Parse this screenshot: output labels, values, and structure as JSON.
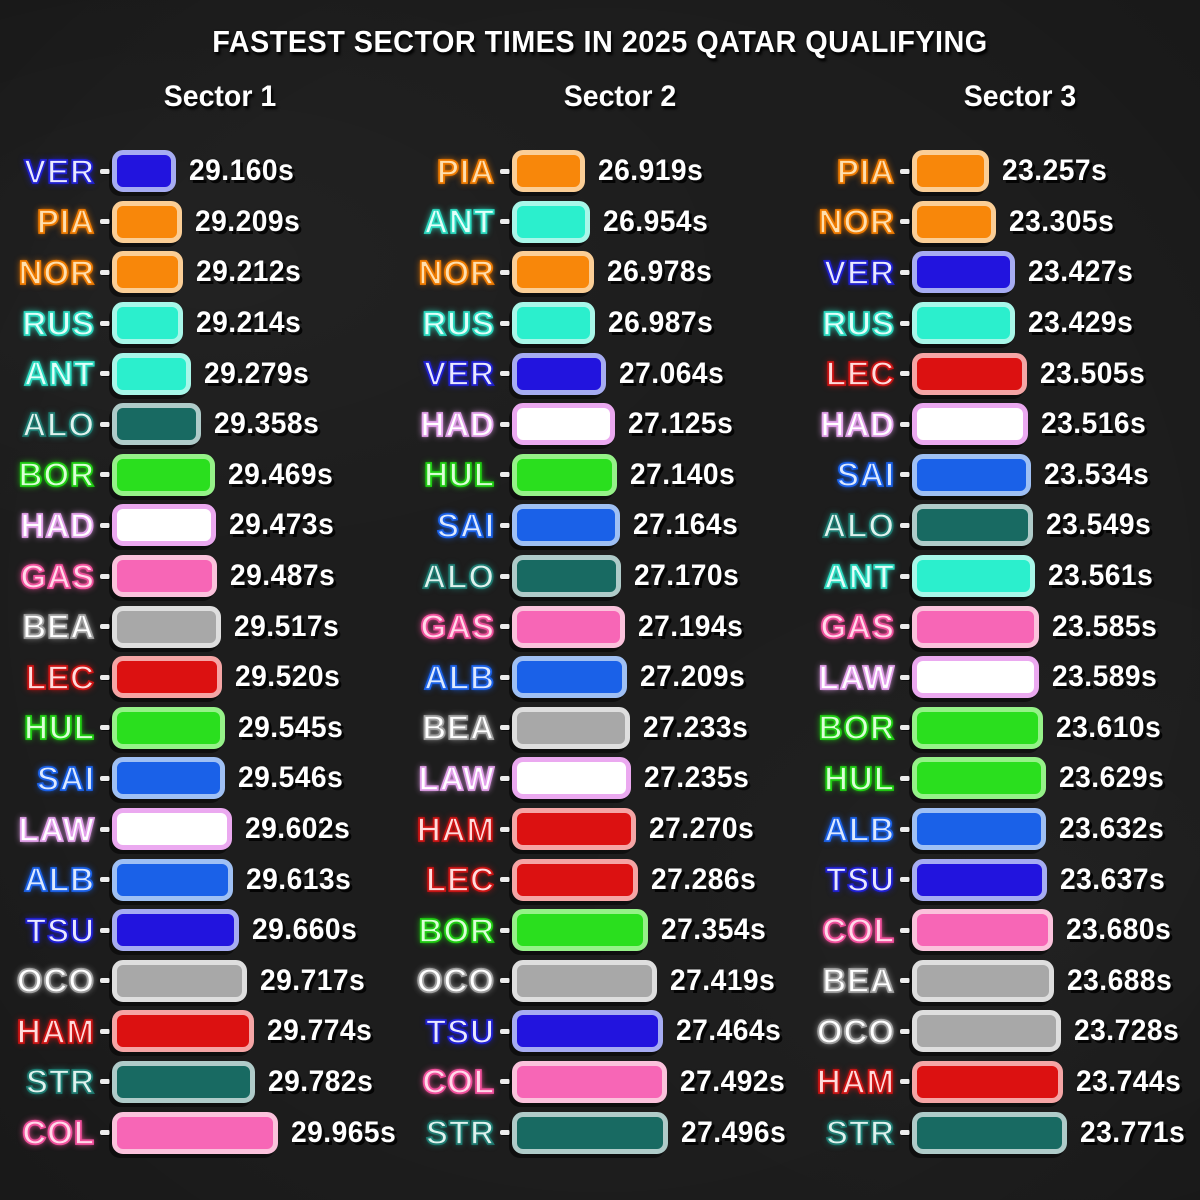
{
  "title": "FASTEST SECTOR TIMES IN 2025 QATAR QUALIFYING",
  "unit": "s",
  "teams": {
    "redbull": {
      "bar": "#2214DE",
      "border": "#A6ACF2",
      "label": "#E9E9FF",
      "glow": "#2020D2"
    },
    "mclaren": {
      "bar": "#F8870A",
      "border": "#FBCE96",
      "label": "#FFDFAE",
      "glow": "#EE7A00"
    },
    "mercedes": {
      "bar": "#2BEFCD",
      "border": "#A8F7E9",
      "label": "#E2FFFA",
      "glow": "#2BD8BE"
    },
    "astonmartin": {
      "bar": "#186A62",
      "border": "#AFCBC9",
      "label": "#DFF2EE",
      "glow": "#1E7A70"
    },
    "sauber": {
      "bar": "#2ADF1E",
      "border": "#95F288",
      "label": "#DAFFD6",
      "glow": "#1FCC12"
    },
    "racingbulls": {
      "bar": "#FFFFFF",
      "border": "#EBA9F0",
      "label": "#FFFFFF",
      "glow": "#E2A0EA"
    },
    "alpine": {
      "bar": "#F766B6",
      "border": "#FBC2DC",
      "label": "#FFD9E9",
      "glow": "#F0509C"
    },
    "haas": {
      "bar": "#A8A8A8",
      "border": "#DEDEDE",
      "label": "#FFFFFF",
      "glow": "#A0A0A0"
    },
    "ferrari": {
      "bar": "#DC1111",
      "border": "#F5A5A5",
      "label": "#FFDCDC",
      "glow": "#CC1414"
    },
    "williams": {
      "bar": "#1A61E8",
      "border": "#9FC0F4",
      "label": "#DCE9FF",
      "glow": "#1A61E8"
    }
  },
  "driver_teams": {
    "VER": "redbull",
    "TSU": "redbull",
    "PIA": "mclaren",
    "NOR": "mclaren",
    "RUS": "mercedes",
    "ANT": "mercedes",
    "ALO": "astonmartin",
    "STR": "astonmartin",
    "BOR": "sauber",
    "HUL": "sauber",
    "HAD": "racingbulls",
    "LAW": "racingbulls",
    "GAS": "alpine",
    "COL": "alpine",
    "BEA": "haas",
    "OCO": "haas",
    "LEC": "ferrari",
    "HAM": "ferrari",
    "SAI": "williams",
    "ALB": "williams"
  },
  "chart_data": [
    {
      "type": "bar",
      "title": "Sector 1",
      "entries": [
        {
          "driver": "VER",
          "time": 29.16,
          "display": "29.160s"
        },
        {
          "driver": "PIA",
          "time": 29.209,
          "display": "29.209s"
        },
        {
          "driver": "NOR",
          "time": 29.212,
          "display": "29.212s"
        },
        {
          "driver": "RUS",
          "time": 29.214,
          "display": "29.214s"
        },
        {
          "driver": "ANT",
          "time": 29.279,
          "display": "29.279s"
        },
        {
          "driver": "ALO",
          "time": 29.358,
          "display": "29.358s"
        },
        {
          "driver": "BOR",
          "time": 29.469,
          "display": "29.469s"
        },
        {
          "driver": "HAD",
          "time": 29.473,
          "display": "29.473s"
        },
        {
          "driver": "GAS",
          "time": 29.487,
          "display": "29.487s"
        },
        {
          "driver": "BEA",
          "time": 29.517,
          "display": "29.517s"
        },
        {
          "driver": "LEC",
          "time": 29.52,
          "display": "29.520s"
        },
        {
          "driver": "HUL",
          "time": 29.545,
          "display": "29.545s"
        },
        {
          "driver": "SAI",
          "time": 29.546,
          "display": "29.546s"
        },
        {
          "driver": "LAW",
          "time": 29.602,
          "display": "29.602s"
        },
        {
          "driver": "ALB",
          "time": 29.613,
          "display": "29.613s"
        },
        {
          "driver": "TSU",
          "time": 29.66,
          "display": "29.660s"
        },
        {
          "driver": "OCO",
          "time": 29.717,
          "display": "29.717s"
        },
        {
          "driver": "HAM",
          "time": 29.774,
          "display": "29.774s"
        },
        {
          "driver": "STR",
          "time": 29.782,
          "display": "29.782s"
        },
        {
          "driver": "COL",
          "time": 29.965,
          "display": "29.965s"
        }
      ]
    },
    {
      "type": "bar",
      "title": "Sector 2",
      "entries": [
        {
          "driver": "PIA",
          "time": 26.919,
          "display": "26.919s"
        },
        {
          "driver": "ANT",
          "time": 26.954,
          "display": "26.954s"
        },
        {
          "driver": "NOR",
          "time": 26.978,
          "display": "26.978s"
        },
        {
          "driver": "RUS",
          "time": 26.987,
          "display": "26.987s"
        },
        {
          "driver": "VER",
          "time": 27.064,
          "display": "27.064s"
        },
        {
          "driver": "HAD",
          "time": 27.125,
          "display": "27.125s"
        },
        {
          "driver": "HUL",
          "time": 27.14,
          "display": "27.140s"
        },
        {
          "driver": "SAI",
          "time": 27.164,
          "display": "27.164s"
        },
        {
          "driver": "ALO",
          "time": 27.17,
          "display": "27.170s"
        },
        {
          "driver": "GAS",
          "time": 27.194,
          "display": "27.194s"
        },
        {
          "driver": "ALB",
          "time": 27.209,
          "display": "27.209s"
        },
        {
          "driver": "BEA",
          "time": 27.233,
          "display": "27.233s"
        },
        {
          "driver": "LAW",
          "time": 27.235,
          "display": "27.235s"
        },
        {
          "driver": "HAM",
          "time": 27.27,
          "display": "27.270s"
        },
        {
          "driver": "LEC",
          "time": 27.286,
          "display": "27.286s"
        },
        {
          "driver": "BOR",
          "time": 27.354,
          "display": "27.354s"
        },
        {
          "driver": "OCO",
          "time": 27.419,
          "display": "27.419s"
        },
        {
          "driver": "TSU",
          "time": 27.464,
          "display": "27.464s"
        },
        {
          "driver": "COL",
          "time": 27.492,
          "display": "27.492s"
        },
        {
          "driver": "STR",
          "time": 27.496,
          "display": "27.496s"
        }
      ]
    },
    {
      "type": "bar",
      "title": "Sector 3",
      "entries": [
        {
          "driver": "PIA",
          "time": 23.257,
          "display": "23.257s"
        },
        {
          "driver": "NOR",
          "time": 23.305,
          "display": "23.305s"
        },
        {
          "driver": "VER",
          "time": 23.427,
          "display": "23.427s"
        },
        {
          "driver": "RUS",
          "time": 23.429,
          "display": "23.429s"
        },
        {
          "driver": "LEC",
          "time": 23.505,
          "display": "23.505s"
        },
        {
          "driver": "HAD",
          "time": 23.516,
          "display": "23.516s"
        },
        {
          "driver": "SAI",
          "time": 23.534,
          "display": "23.534s"
        },
        {
          "driver": "ALO",
          "time": 23.549,
          "display": "23.549s"
        },
        {
          "driver": "ANT",
          "time": 23.561,
          "display": "23.561s"
        },
        {
          "driver": "GAS",
          "time": 23.585,
          "display": "23.585s"
        },
        {
          "driver": "LAW",
          "time": 23.589,
          "display": "23.589s"
        },
        {
          "driver": "BOR",
          "time": 23.61,
          "display": "23.610s"
        },
        {
          "driver": "HUL",
          "time": 23.629,
          "display": "23.629s"
        },
        {
          "driver": "ALB",
          "time": 23.632,
          "display": "23.632s"
        },
        {
          "driver": "TSU",
          "time": 23.637,
          "display": "23.637s"
        },
        {
          "driver": "COL",
          "time": 23.68,
          "display": "23.680s"
        },
        {
          "driver": "BEA",
          "time": 23.688,
          "display": "23.688s"
        },
        {
          "driver": "OCO",
          "time": 23.728,
          "display": "23.728s"
        },
        {
          "driver": "HAM",
          "time": 23.744,
          "display": "23.744s"
        },
        {
          "driver": "STR",
          "time": 23.771,
          "display": "23.771s"
        }
      ]
    }
  ]
}
